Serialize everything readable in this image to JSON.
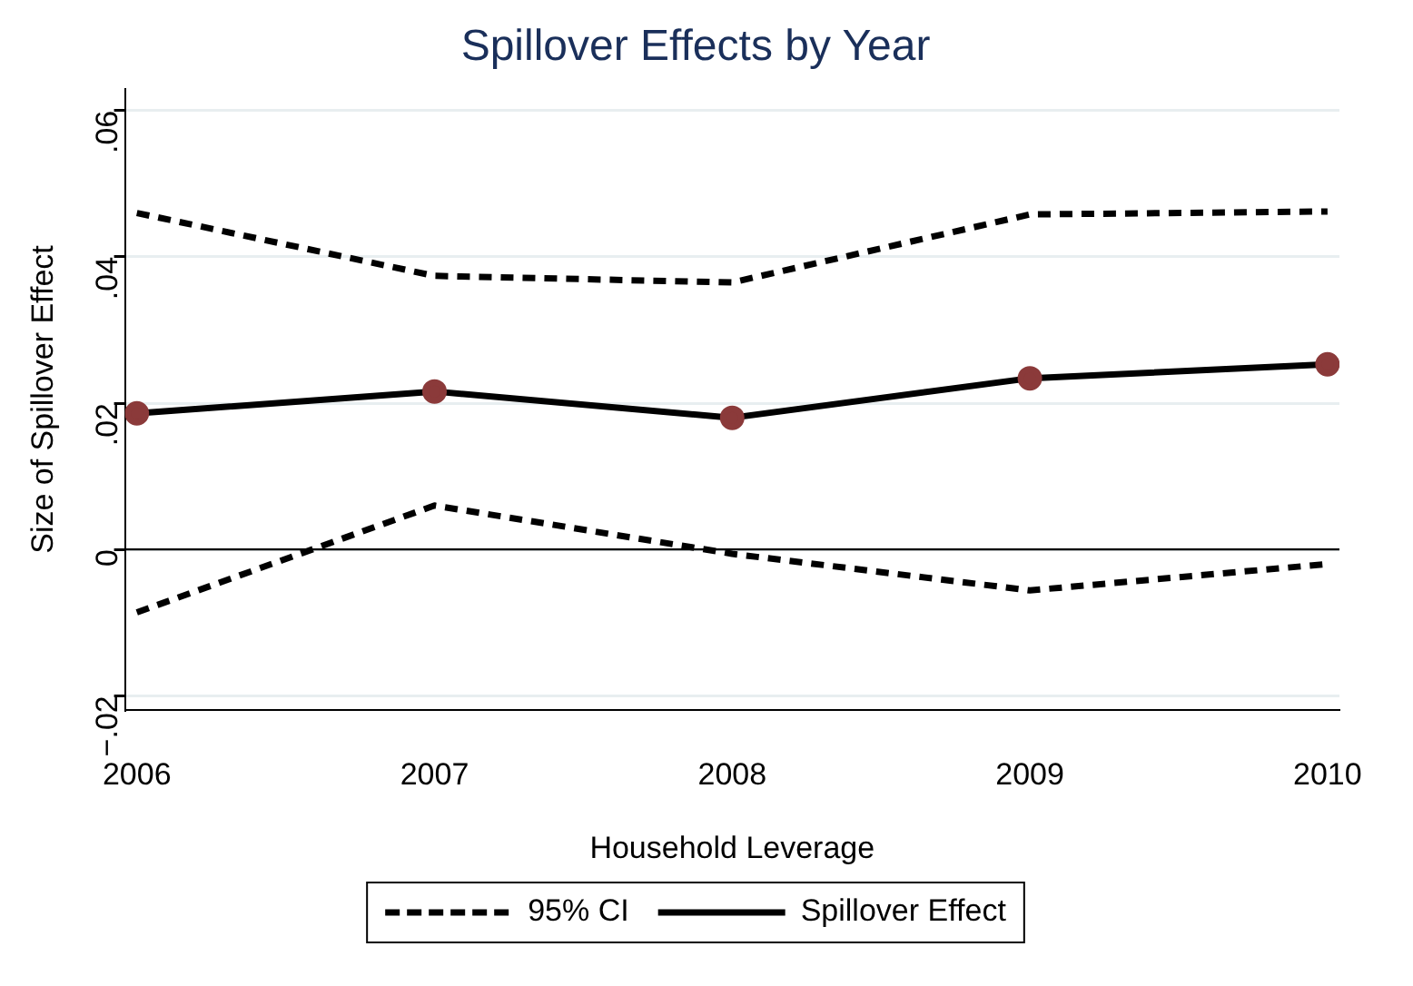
{
  "chart_data": {
    "type": "line",
    "title": "Spillover Effects by Year",
    "xlabel": "Household Leverage",
    "ylabel": "Size of Spillover Effect",
    "x": [
      2006,
      2007,
      2008,
      2009,
      2010
    ],
    "series": [
      {
        "name": "95% CI",
        "color": "#000000",
        "line_style": "dashed",
        "marker": "none",
        "values": [
          0.046,
          0.0374,
          0.0365,
          0.0458,
          0.0462
        ]
      },
      {
        "color": "#000000",
        "line_style": "dashed",
        "marker": "none",
        "values": [
          -0.0086,
          0.006,
          -0.0006,
          -0.0056,
          -0.002
        ]
      },
      {
        "name": "Spillover Effect",
        "color": "#000000",
        "colors": [
          "#8b3a3a",
          "#8b3a3a",
          "#8b3a3a",
          "#8b3a3a",
          "#8b3a3a"
        ],
        "line_style": "solid",
        "marker": "circle",
        "values": [
          0.0186,
          0.0216,
          0.018,
          0.0234,
          0.0253
        ]
      }
    ],
    "xlim": [
      2005.96,
      2010.04
    ],
    "xticks": [
      2006,
      2007,
      2008,
      2009,
      2010
    ],
    "ylim": [
      -0.022,
      0.063
    ],
    "yticks": [
      {
        "value": -0.02,
        "label": "−.02"
      },
      0,
      {
        "value": 0.02,
        "label": ".02"
      },
      {
        "value": 0.04,
        "label": ".04"
      },
      {
        "value": 0.06,
        "label": ".06"
      }
    ],
    "ref_lines": [
      {
        "axis": "y",
        "value": 0,
        "color": "#000000"
      }
    ],
    "grid": "y",
    "legend": "bottom"
  }
}
